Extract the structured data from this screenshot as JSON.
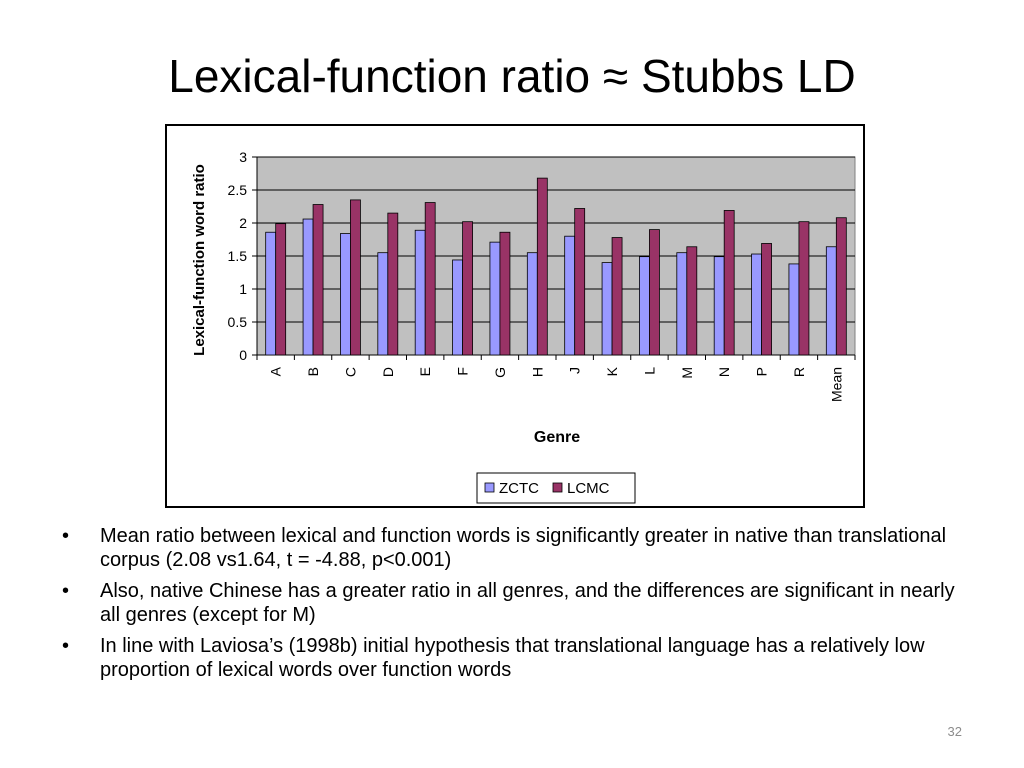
{
  "slide": {
    "title": "Lexical-function ratio ≈ Stubbs LD",
    "page_number": "32",
    "bullets": [
      {
        "marker": "•",
        "text": "Mean ratio between lexical and function words is significantly greater in native than translational corpus (2.08 vs1.64, t = -4.88, p<0.001)"
      },
      {
        "marker": "•",
        "text": "Also, native Chinese has a greater ratio in all genres, and the differences are significant in nearly all genres (except for M)"
      },
      {
        "marker": "•",
        "text": "In line with Laviosa’s (1998b) initial hypothesis that translational language has a relatively low proportion of lexical words over function words"
      }
    ]
  },
  "chart_data": {
    "type": "bar",
    "title": "",
    "xlabel": "Genre",
    "ylabel": "Lexical-function word ratio",
    "ylim": [
      0,
      3
    ],
    "yticks": [
      0,
      0.5,
      1,
      1.5,
      2,
      2.5,
      3
    ],
    "ytick_labels": [
      "0",
      "0.5",
      "1",
      "1.5",
      "2",
      "2.5",
      "3"
    ],
    "grid": true,
    "legend_position": "bottom",
    "plot_background": "#c0c0c0",
    "categories": [
      "A",
      "B",
      "C",
      "D",
      "E",
      "F",
      "G",
      "H",
      "J",
      "K",
      "L",
      "M",
      "N",
      "P",
      "R",
      "Mean"
    ],
    "series": [
      {
        "name": "ZCTC",
        "color": "#9999ff",
        "values": [
          1.86,
          2.06,
          1.84,
          1.55,
          1.89,
          1.44,
          1.71,
          1.55,
          1.8,
          1.4,
          1.49,
          1.55,
          1.49,
          1.53,
          1.38,
          1.64
        ]
      },
      {
        "name": "LCMC",
        "color": "#993366",
        "values": [
          1.99,
          2.28,
          2.35,
          2.15,
          2.31,
          2.02,
          1.86,
          2.68,
          2.22,
          1.78,
          1.9,
          1.64,
          2.19,
          1.69,
          2.02,
          2.08
        ]
      }
    ]
  }
}
